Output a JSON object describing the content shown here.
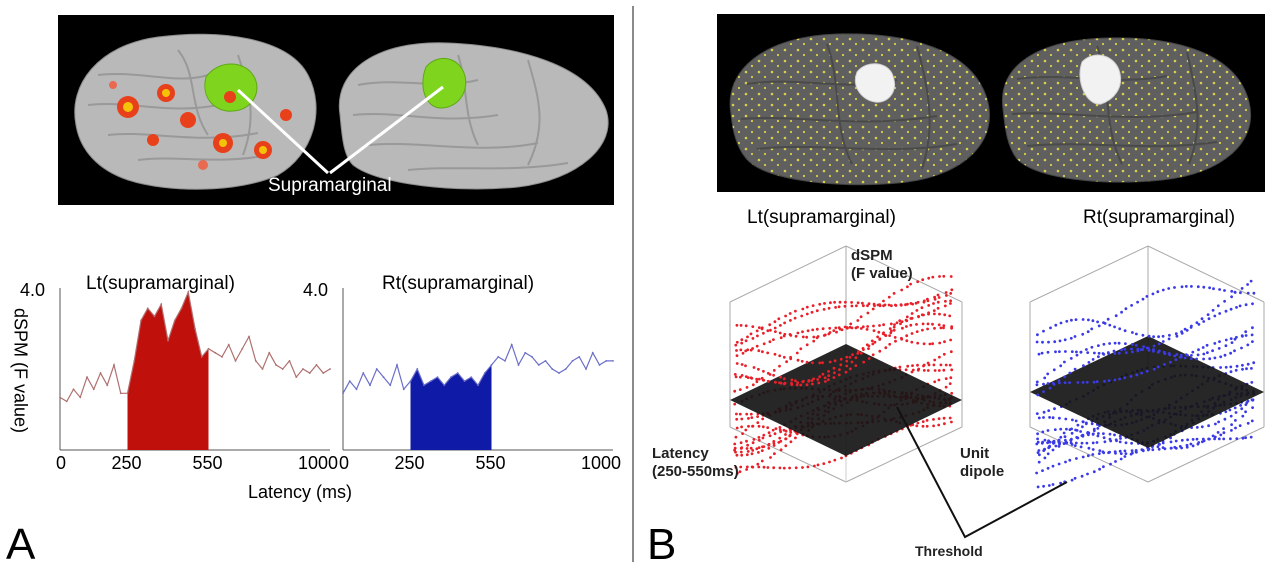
{
  "panel_a": {
    "letter": "A",
    "brain_label": "Supramarginal",
    "ylabel": "dSPM (F value)",
    "xlabel": "Latency (ms)",
    "left_chart": {
      "title": "Lt(supramarginal)",
      "ymax_label": "4.0"
    },
    "right_chart": {
      "title": "Rt(supramarginal)",
      "ymax_label": "4.0"
    }
  },
  "panel_b": {
    "letter": "B",
    "left_title": "Lt(supramarginal)",
    "right_title": "Rt(supramarginal)",
    "zlabel_line1": "dSPM",
    "zlabel_line2": "(F value)",
    "latency_line1": "Latency",
    "latency_line2": "(250-550ms)",
    "unit_line1": "Unit",
    "unit_line2": "dipole",
    "threshold_label": "Threshold"
  },
  "colors": {
    "left_fill": "#c0100b",
    "left_line": "#b07070",
    "right_fill": "#0f1aa6",
    "right_line": "#6b6fc9",
    "lt_dots": "#e8202a",
    "rt_dots": "#3a3ae6"
  },
  "chart_data": [
    {
      "type": "area",
      "title": "Lt(supramarginal)",
      "xlabel": "Latency (ms)",
      "ylabel": "dSPM (F value)",
      "xlim": [
        0,
        1000
      ],
      "ylim": [
        0,
        4.0
      ],
      "x_ticks": [
        "0",
        "250",
        "550",
        "1000"
      ],
      "shaded_window": [
        250,
        550
      ],
      "x": [
        0,
        25,
        50,
        75,
        100,
        125,
        150,
        175,
        200,
        225,
        250,
        275,
        300,
        325,
        350,
        375,
        400,
        425,
        450,
        475,
        500,
        525,
        550,
        575,
        600,
        625,
        650,
        675,
        700,
        725,
        750,
        775,
        800,
        825,
        850,
        875,
        900,
        925,
        950,
        975,
        1000
      ],
      "values": [
        1.3,
        1.2,
        1.5,
        1.3,
        1.8,
        1.5,
        1.9,
        1.6,
        2.1,
        1.4,
        1.4,
        2.2,
        3.2,
        3.5,
        3.3,
        3.6,
        2.7,
        3.2,
        3.5,
        3.9,
        3.0,
        2.3,
        2.5,
        2.4,
        2.3,
        2.6,
        2.2,
        2.5,
        2.8,
        2.2,
        2.0,
        2.4,
        2.1,
        2.0,
        2.2,
        1.8,
        2.0,
        1.9,
        2.1,
        1.9,
        2.0
      ]
    },
    {
      "type": "area",
      "title": "Rt(supramarginal)",
      "xlabel": "Latency (ms)",
      "ylabel": "dSPM (F value)",
      "xlim": [
        0,
        1000
      ],
      "ylim": [
        0,
        4.0
      ],
      "x_ticks": [
        "0",
        "250",
        "550",
        "1000"
      ],
      "shaded_window": [
        250,
        550
      ],
      "x": [
        0,
        25,
        50,
        75,
        100,
        125,
        150,
        175,
        200,
        225,
        250,
        275,
        300,
        325,
        350,
        375,
        400,
        425,
        450,
        475,
        500,
        525,
        550,
        575,
        600,
        625,
        650,
        675,
        700,
        725,
        750,
        775,
        800,
        825,
        850,
        875,
        900,
        925,
        950,
        975,
        1000
      ],
      "values": [
        1.4,
        1.7,
        1.5,
        1.9,
        1.6,
        2.0,
        1.8,
        1.6,
        2.1,
        1.5,
        1.7,
        2.0,
        1.6,
        1.7,
        1.8,
        1.6,
        1.8,
        1.9,
        1.7,
        1.8,
        1.6,
        1.9,
        2.1,
        2.3,
        2.2,
        2.6,
        2.1,
        2.4,
        2.3,
        2.1,
        2.2,
        2.0,
        1.9,
        2.0,
        2.2,
        2.3,
        2.0,
        2.4,
        2.1,
        2.2,
        2.2
      ]
    }
  ]
}
